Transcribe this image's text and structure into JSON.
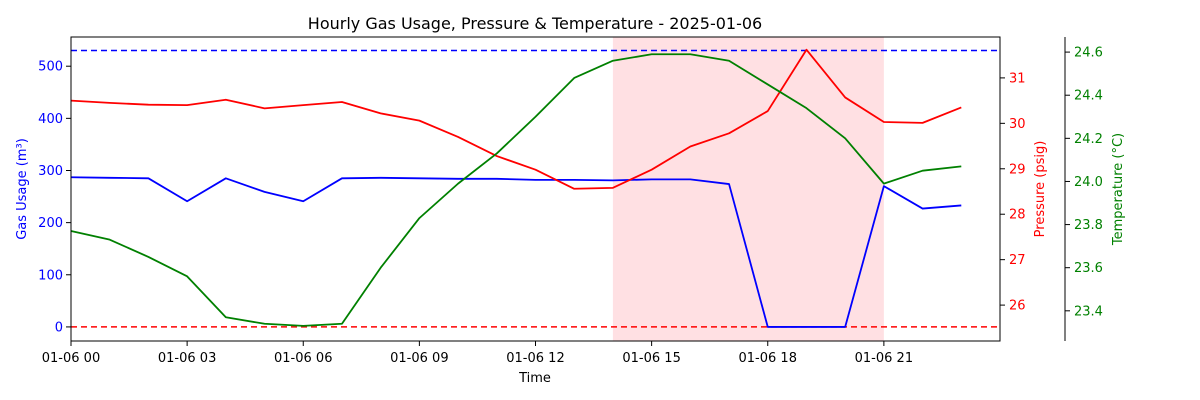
{
  "chart_data": {
    "type": "line",
    "title": "Hourly Gas Usage, Pressure & Temperature - 2025-01-06",
    "xlabel": "Time",
    "x_hours": [
      0,
      1,
      2,
      3,
      4,
      5,
      6,
      7,
      8,
      9,
      10,
      11,
      12,
      13,
      14,
      15,
      16,
      17,
      18,
      19,
      20,
      21,
      22,
      23
    ],
    "x_ticks": [
      {
        "hour": 0,
        "label": "01-06 00"
      },
      {
        "hour": 3,
        "label": "01-06 03"
      },
      {
        "hour": 6,
        "label": "01-06 06"
      },
      {
        "hour": 9,
        "label": "01-06 09"
      },
      {
        "hour": 12,
        "label": "01-06 12"
      },
      {
        "hour": 15,
        "label": "01-06 15"
      },
      {
        "hour": 18,
        "label": "01-06 18"
      },
      {
        "hour": 21,
        "label": "01-06 21"
      }
    ],
    "xlim": [
      0,
      24
    ],
    "highlight_range": [
      14,
      21
    ],
    "highlight_color": "#ffe0e3",
    "axes": {
      "usage": {
        "label": "Gas Usage (m³)",
        "color": "#0000ff",
        "ylim": [
          -27,
          556
        ],
        "ticks": [
          0,
          100,
          200,
          300,
          400,
          500
        ]
      },
      "pressure": {
        "label": "Pressure (psig)",
        "color": "#ff0000",
        "ylim": [
          25.21,
          31.9
        ],
        "ticks": [
          26,
          27,
          28,
          29,
          30,
          31
        ]
      },
      "temperature": {
        "label": "Temperature (°C)",
        "color": "#008000",
        "ylim": [
          23.26,
          24.67
        ],
        "ticks": [
          "23.4",
          "23.6",
          "23.8",
          "24.0",
          "24.2",
          "24.4",
          "24.6"
        ]
      }
    },
    "reference_lines": [
      {
        "axis": "usage",
        "value": 530,
        "color": "#0000ff",
        "style": "dashed"
      },
      {
        "axis": "usage",
        "value": 0,
        "color": "#ff0000",
        "style": "dashed"
      }
    ],
    "series": [
      {
        "axis": "usage",
        "color": "#0000ff",
        "values": [
          287,
          286,
          285,
          241,
          285,
          259,
          241,
          285,
          286,
          285,
          284,
          284,
          282,
          282,
          281,
          283,
          283,
          274,
          0,
          0,
          0,
          270,
          227,
          233
        ]
      },
      {
        "axis": "pressure",
        "color": "#ff0000",
        "values": [
          30.5,
          30.45,
          30.41,
          30.4,
          30.52,
          30.33,
          30.4,
          30.47,
          30.22,
          30.06,
          29.7,
          29.28,
          28.98,
          28.56,
          28.58,
          28.98,
          29.49,
          29.78,
          30.27,
          31.62,
          30.57,
          30.03,
          30.01,
          30.35
        ]
      },
      {
        "axis": "temperature",
        "color": "#008000",
        "values": [
          23.77,
          23.73,
          23.65,
          23.56,
          23.37,
          23.34,
          23.33,
          23.34,
          23.6,
          23.83,
          23.99,
          24.13,
          24.3,
          24.48,
          24.56,
          24.59,
          24.59,
          24.56,
          24.45,
          24.34,
          24.2,
          23.99,
          24.05,
          24.07
        ]
      }
    ],
    "grid": false,
    "legend": "none"
  }
}
